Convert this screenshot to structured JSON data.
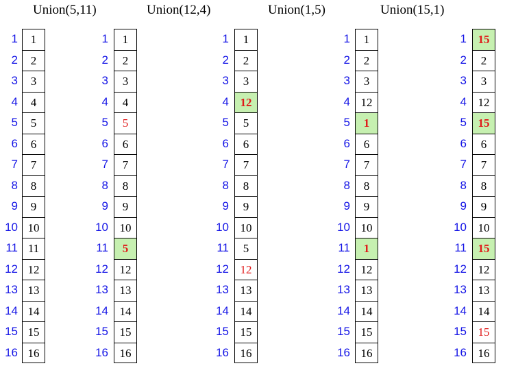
{
  "headers": [
    "Union(5,11)",
    "Union(12,4)",
    "Union(1,5)",
    "Union(15,1)"
  ],
  "indices": [
    "1",
    "2",
    "3",
    "4",
    "5",
    "6",
    "7",
    "8",
    "9",
    "10",
    "11",
    "12",
    "13",
    "14",
    "15",
    "16"
  ],
  "columns": [
    {
      "values": [
        "1",
        "2",
        "3",
        "4",
        "5",
        "6",
        "7",
        "8",
        "9",
        "10",
        "11",
        "12",
        "13",
        "14",
        "15",
        "16"
      ],
      "highlight": [],
      "red": []
    },
    {
      "values": [
        "1",
        "2",
        "3",
        "4",
        "5",
        "6",
        "7",
        "8",
        "9",
        "10",
        "5",
        "12",
        "13",
        "14",
        "15",
        "16"
      ],
      "highlight": [
        11
      ],
      "red": [
        5
      ]
    },
    {
      "values": [
        "1",
        "2",
        "3",
        "12",
        "5",
        "6",
        "7",
        "8",
        "9",
        "10",
        "5",
        "12",
        "13",
        "14",
        "15",
        "16"
      ],
      "highlight": [
        4
      ],
      "red": [
        12
      ]
    },
    {
      "values": [
        "1",
        "2",
        "3",
        "12",
        "1",
        "6",
        "7",
        "8",
        "9",
        "10",
        "1",
        "12",
        "13",
        "14",
        "15",
        "16"
      ],
      "highlight": [
        5,
        11
      ],
      "red": []
    },
    {
      "values": [
        "15",
        "2",
        "3",
        "12",
        "15",
        "6",
        "7",
        "8",
        "9",
        "10",
        "15",
        "12",
        "13",
        "14",
        "15",
        "16"
      ],
      "highlight": [
        1,
        5,
        11
      ],
      "red": [
        15
      ]
    }
  ],
  "colors": {
    "index": "#1414e6",
    "highlight_bg": "#c6f0b0",
    "changed_text": "#e01818"
  }
}
